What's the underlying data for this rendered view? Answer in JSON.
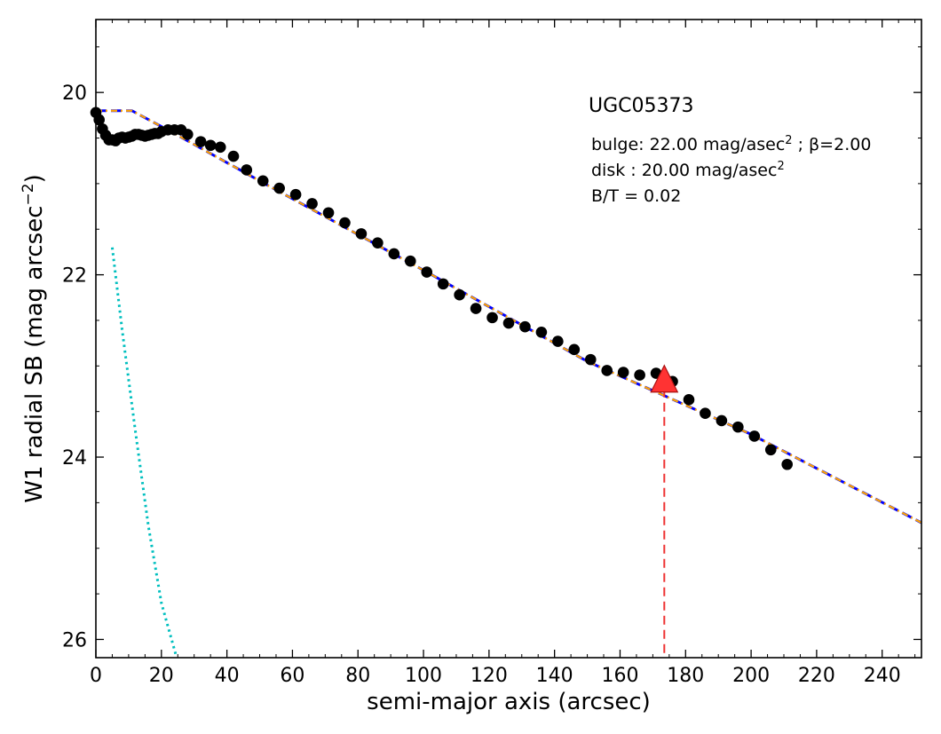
{
  "chart_data": {
    "type": "scatter",
    "xlabel": "semi-major axis (arcsec)",
    "ylabel_main": "W1 radial SB (mag arcsec",
    "ylabel_sup": "−2",
    "ylabel_close": ")",
    "xlim": [
      0,
      252
    ],
    "ylim": [
      26.2,
      19.2
    ],
    "y_inverted": true,
    "xticks": [
      0,
      20,
      40,
      60,
      80,
      100,
      120,
      140,
      160,
      180,
      200,
      220,
      240
    ],
    "xtick_labels": [
      "0",
      "20",
      "40",
      "60",
      "80",
      "100",
      "120",
      "140",
      "160",
      "180",
      "200",
      "220",
      "240"
    ],
    "yticks": [
      20,
      22,
      24,
      26
    ],
    "ytick_labels": [
      "20",
      "22",
      "24",
      "26"
    ],
    "grid": false,
    "annotations": {
      "galaxy": "UGC05373",
      "bulge_prefix": "bulge: 22.00 mag/asec",
      "bulge_sup": "2",
      "bulge_suffix": " ; β=2.00",
      "disk_prefix": "disk  : 20.00 mag/asec",
      "disk_sup": "2",
      "bt": "B/T = 0.02"
    },
    "colors": {
      "points": "#000000",
      "total_model": "#0000ff",
      "disk_model": "#ffa500",
      "bulge_model": "#00bfbf",
      "marker": "#ff3333",
      "marker_line": "#ee3333"
    },
    "series": [
      {
        "kind": "scatter",
        "x": [
          0,
          1,
          2,
          3,
          4,
          5,
          6,
          7,
          8,
          9,
          10,
          11,
          12,
          13,
          14,
          15,
          16,
          17,
          18,
          19,
          20,
          22,
          24,
          26,
          28,
          32,
          35,
          38,
          42,
          46,
          51,
          56,
          61,
          66,
          71,
          76,
          81,
          86,
          91,
          96,
          101,
          106,
          111,
          116,
          121,
          126,
          131,
          136,
          141,
          146,
          151,
          156,
          161,
          166,
          171,
          176,
          181,
          186,
          191,
          196,
          201,
          206,
          211
        ],
        "y": [
          20.22,
          20.3,
          20.4,
          20.47,
          20.52,
          20.52,
          20.53,
          20.5,
          20.49,
          20.5,
          20.49,
          20.48,
          20.46,
          20.46,
          20.47,
          20.48,
          20.47,
          20.46,
          20.45,
          20.45,
          20.43,
          20.41,
          20.41,
          20.41,
          20.46,
          20.54,
          20.58,
          20.6,
          20.7,
          20.85,
          20.97,
          21.05,
          21.12,
          21.22,
          21.32,
          21.43,
          21.55,
          21.65,
          21.77,
          21.85,
          21.97,
          22.1,
          22.22,
          22.37,
          22.47,
          22.53,
          22.57,
          22.63,
          22.73,
          22.82,
          22.93,
          23.05,
          23.07,
          23.1,
          23.08,
          23.17,
          23.37,
          23.52,
          23.6,
          23.67,
          23.77,
          23.92,
          24.08
        ]
      },
      {
        "kind": "line",
        "x": [
          0,
          11,
          25,
          50,
          100,
          150,
          200,
          252
        ],
        "y": [
          20.2,
          20.2,
          20.47,
          20.97,
          21.95,
          22.95,
          23.75,
          24.72
        ]
      },
      {
        "kind": "line",
        "x": [
          5,
          8,
          12,
          16,
          20,
          24.5
        ],
        "y": [
          21.7,
          22.6,
          23.7,
          24.75,
          25.6,
          26.18
        ]
      },
      {
        "kind": "marker",
        "x": 173.5,
        "y": 23.17
      }
    ]
  }
}
